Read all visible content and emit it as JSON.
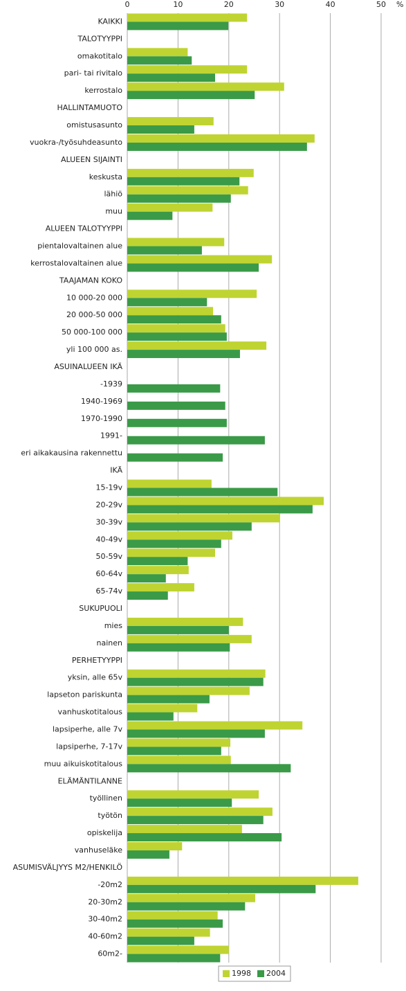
{
  "chart_data": {
    "type": "hbar",
    "xlabel": "%",
    "xlim": [
      0,
      50
    ],
    "xticks": [
      0,
      10,
      20,
      30,
      40,
      50
    ],
    "grid": true,
    "legend": "bottom",
    "categories": [
      "KAIKKI",
      "TALOTYYPPI",
      "omakotitalo",
      "pari- tai rivitalo",
      "kerrostalo",
      "HALLINTAMUOTO",
      "omistusasunto",
      "vuokra-/työsuhdeasunto",
      "ALUEEN SIJAINTI",
      "keskusta",
      "lähiö",
      "muu",
      "ALUEEN TALOTYYPPI",
      "pientalovaltainen alue",
      "kerrostalovaltainen alue",
      "TAAJAMAN KOKO",
      "10 000-20 000",
      "20 000-50 000",
      "50 000-100 000",
      "yli 100 000 as.",
      "ASUINALUEEN IKÄ",
      "-1939",
      "1940-1969",
      "1970-1990",
      "1991-",
      "eri aikakausina rakennettu",
      "IKÄ",
      "15-19v",
      "20-29v",
      "30-39v",
      "40-49v",
      "50-59v",
      "60-64v",
      "65-74v",
      "SUKUPUOLI",
      "mies",
      "nainen",
      "PERHETYYPPI",
      "yksin, alle 65v",
      "lapseton pariskunta",
      "vanhuskotitalous",
      "lapsiperhe, alle 7v",
      "lapsiperhe, 7-17v",
      "muu aikuiskotitalous",
      "ELÄMÄNTILANNE",
      "työllinen",
      "työtön",
      "opiskelija",
      "vanhuseläke",
      "ASUMISVÄLJYYS M2/HENKILÖ",
      "-20m2",
      "20-30m2",
      "30-40m2",
      "40-60m2",
      "60m2-"
    ],
    "series": [
      {
        "name": "1998",
        "color": "#bfd431",
        "values": [
          23.6,
          null,
          11.9,
          23.6,
          30.9,
          null,
          17.0,
          36.9,
          null,
          24.9,
          23.8,
          16.8,
          null,
          19.1,
          28.5,
          null,
          25.5,
          16.9,
          19.3,
          27.4,
          null,
          null,
          null,
          null,
          null,
          null,
          null,
          16.6,
          38.7,
          30.1,
          20.7,
          17.3,
          12.1,
          13.2,
          null,
          22.8,
          24.5,
          null,
          27.2,
          24.1,
          13.8,
          34.5,
          20.3,
          20.4,
          null,
          25.9,
          28.6,
          22.6,
          10.8,
          null,
          45.5,
          25.2,
          17.8,
          16.3,
          20.0
        ]
      },
      {
        "name": "2004",
        "color": "#3a9a48",
        "values": [
          19.9,
          null,
          12.7,
          17.3,
          25.1,
          null,
          13.2,
          35.4,
          null,
          22.1,
          20.4,
          8.9,
          null,
          14.7,
          25.9,
          null,
          15.7,
          18.5,
          19.6,
          22.2,
          null,
          18.3,
          19.3,
          19.6,
          27.1,
          18.8,
          null,
          29.6,
          36.5,
          24.5,
          18.5,
          11.9,
          7.6,
          8.0,
          null,
          20.0,
          20.2,
          null,
          26.8,
          16.2,
          9.1,
          27.1,
          18.5,
          32.2,
          null,
          20.6,
          26.8,
          30.4,
          8.3,
          null,
          37.1,
          23.2,
          18.8,
          13.2,
          18.3
        ]
      }
    ]
  }
}
